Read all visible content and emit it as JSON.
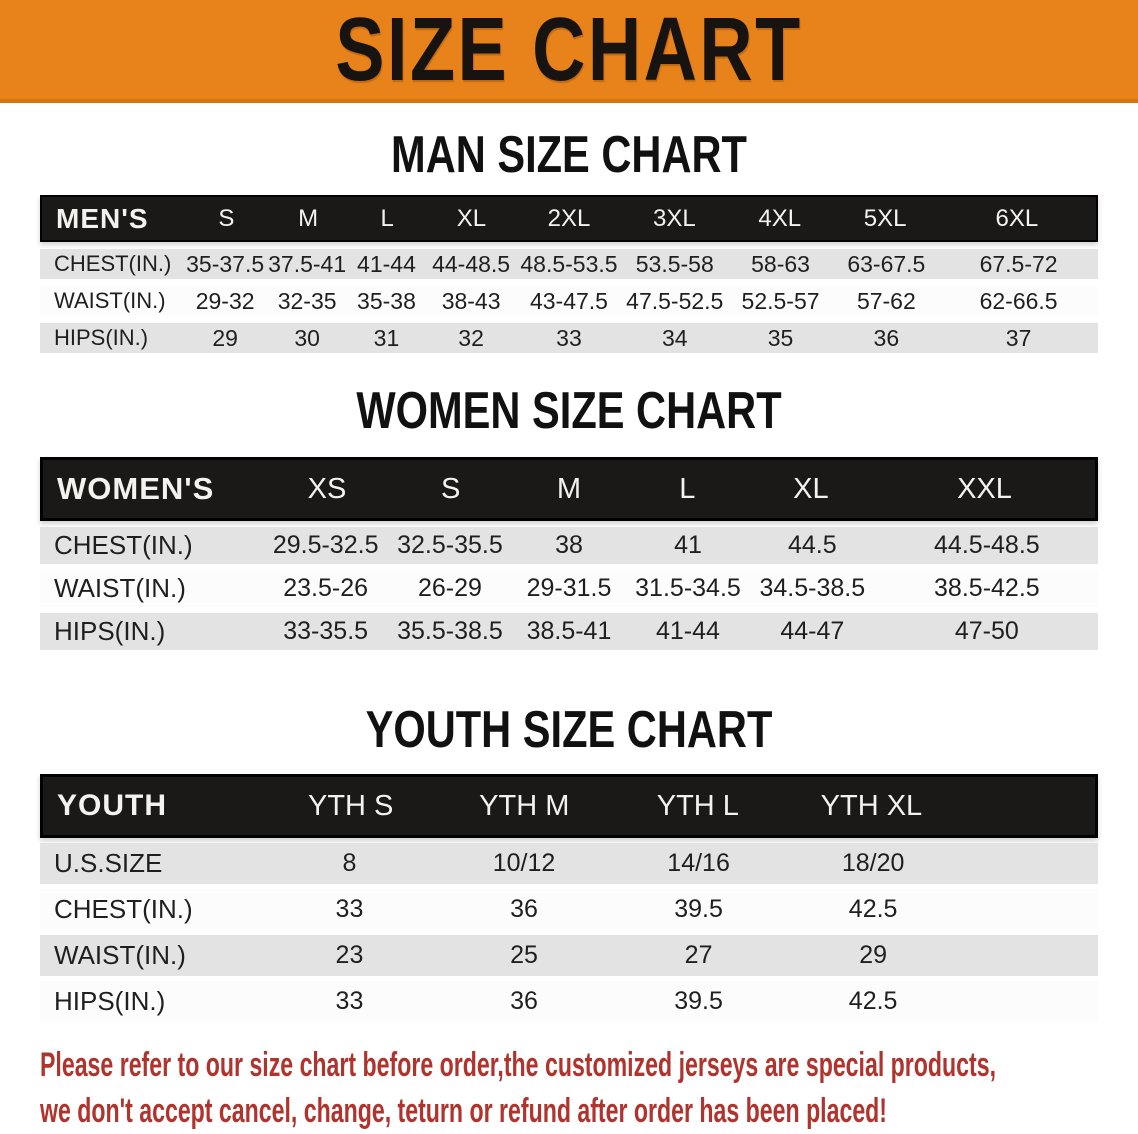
{
  "banner": {
    "title": "SIZE CHART",
    "bg_color": "#E8821B",
    "text_color": "#161310"
  },
  "sections": [
    {
      "title": "MAN SIZE CHART",
      "table": {
        "name": "mens",
        "type": "table",
        "header": [
          "MEN'S",
          "S",
          "M",
          "L",
          "XL",
          "2XL",
          "3XL",
          "4XL",
          "5XL",
          "6XL"
        ],
        "rows": [
          {
            "label": "CHEST(IN.)",
            "shade": "gray",
            "values": [
              "35-37.5",
              "37.5-41",
              "41-44",
              "44-48.5",
              "48.5-53.5",
              "53.5-58",
              "58-63",
              "63-67.5",
              "67.5-72"
            ]
          },
          {
            "label": "WAIST(IN.)",
            "shade": "white",
            "values": [
              "29-32",
              "32-35",
              "35-38",
              "38-43",
              "43-47.5",
              "47.5-52.5",
              "52.5-57",
              "57-62",
              "62-66.5"
            ]
          },
          {
            "label": "HIPS(IN.)",
            "shade": "gray",
            "values": [
              "29",
              "30",
              "31",
              "32",
              "33",
              "34",
              "35",
              "36",
              "37"
            ]
          }
        ]
      }
    },
    {
      "title": "WOMEN SIZE CHART",
      "table": {
        "name": "womens",
        "type": "table",
        "header": [
          "WOMEN'S",
          "XS",
          "S",
          "M",
          "L",
          "XL",
          "XXL"
        ],
        "rows": [
          {
            "label": "CHEST(IN.)",
            "shade": "gray",
            "values": [
              "29.5-32.5",
              "32.5-35.5",
              "38",
              "41",
              "44.5",
              "44.5-48.5"
            ]
          },
          {
            "label": "WAIST(IN.)",
            "shade": "white",
            "values": [
              "23.5-26",
              "26-29",
              "29-31.5",
              "31.5-34.5",
              "34.5-38.5",
              "38.5-42.5"
            ]
          },
          {
            "label": "HIPS(IN.)",
            "shade": "gray",
            "values": [
              "33-35.5",
              "35.5-38.5",
              "38.5-41",
              "41-44",
              "44-47",
              "47-50"
            ]
          }
        ]
      }
    },
    {
      "title": "YOUTH SIZE CHART",
      "table": {
        "name": "youth",
        "type": "table",
        "header": [
          "YOUTH",
          "YTH S",
          "YTH M",
          "YTH L",
          "YTH XL"
        ],
        "rows": [
          {
            "label": "U.S.SIZE",
            "shade": "gray",
            "values": [
              "8",
              "10/12",
              "14/16",
              "18/20"
            ]
          },
          {
            "label": "CHEST(IN.)",
            "shade": "white",
            "values": [
              "33",
              "36",
              "39.5",
              "42.5"
            ]
          },
          {
            "label": "WAIST(IN.)",
            "shade": "gray",
            "values": [
              "23",
              "25",
              "27",
              "29"
            ]
          },
          {
            "label": "HIPS(IN.)",
            "shade": "white",
            "values": [
              "33",
              "36",
              "39.5",
              "42.5"
            ]
          }
        ]
      }
    }
  ],
  "disclaimer": {
    "color": "#B0342E",
    "lines": [
      "Please refer to our size chart before order,the customized jerseys are special products,",
      "we don't accept cancel, change, teturn or refund after order has been placed!"
    ]
  }
}
